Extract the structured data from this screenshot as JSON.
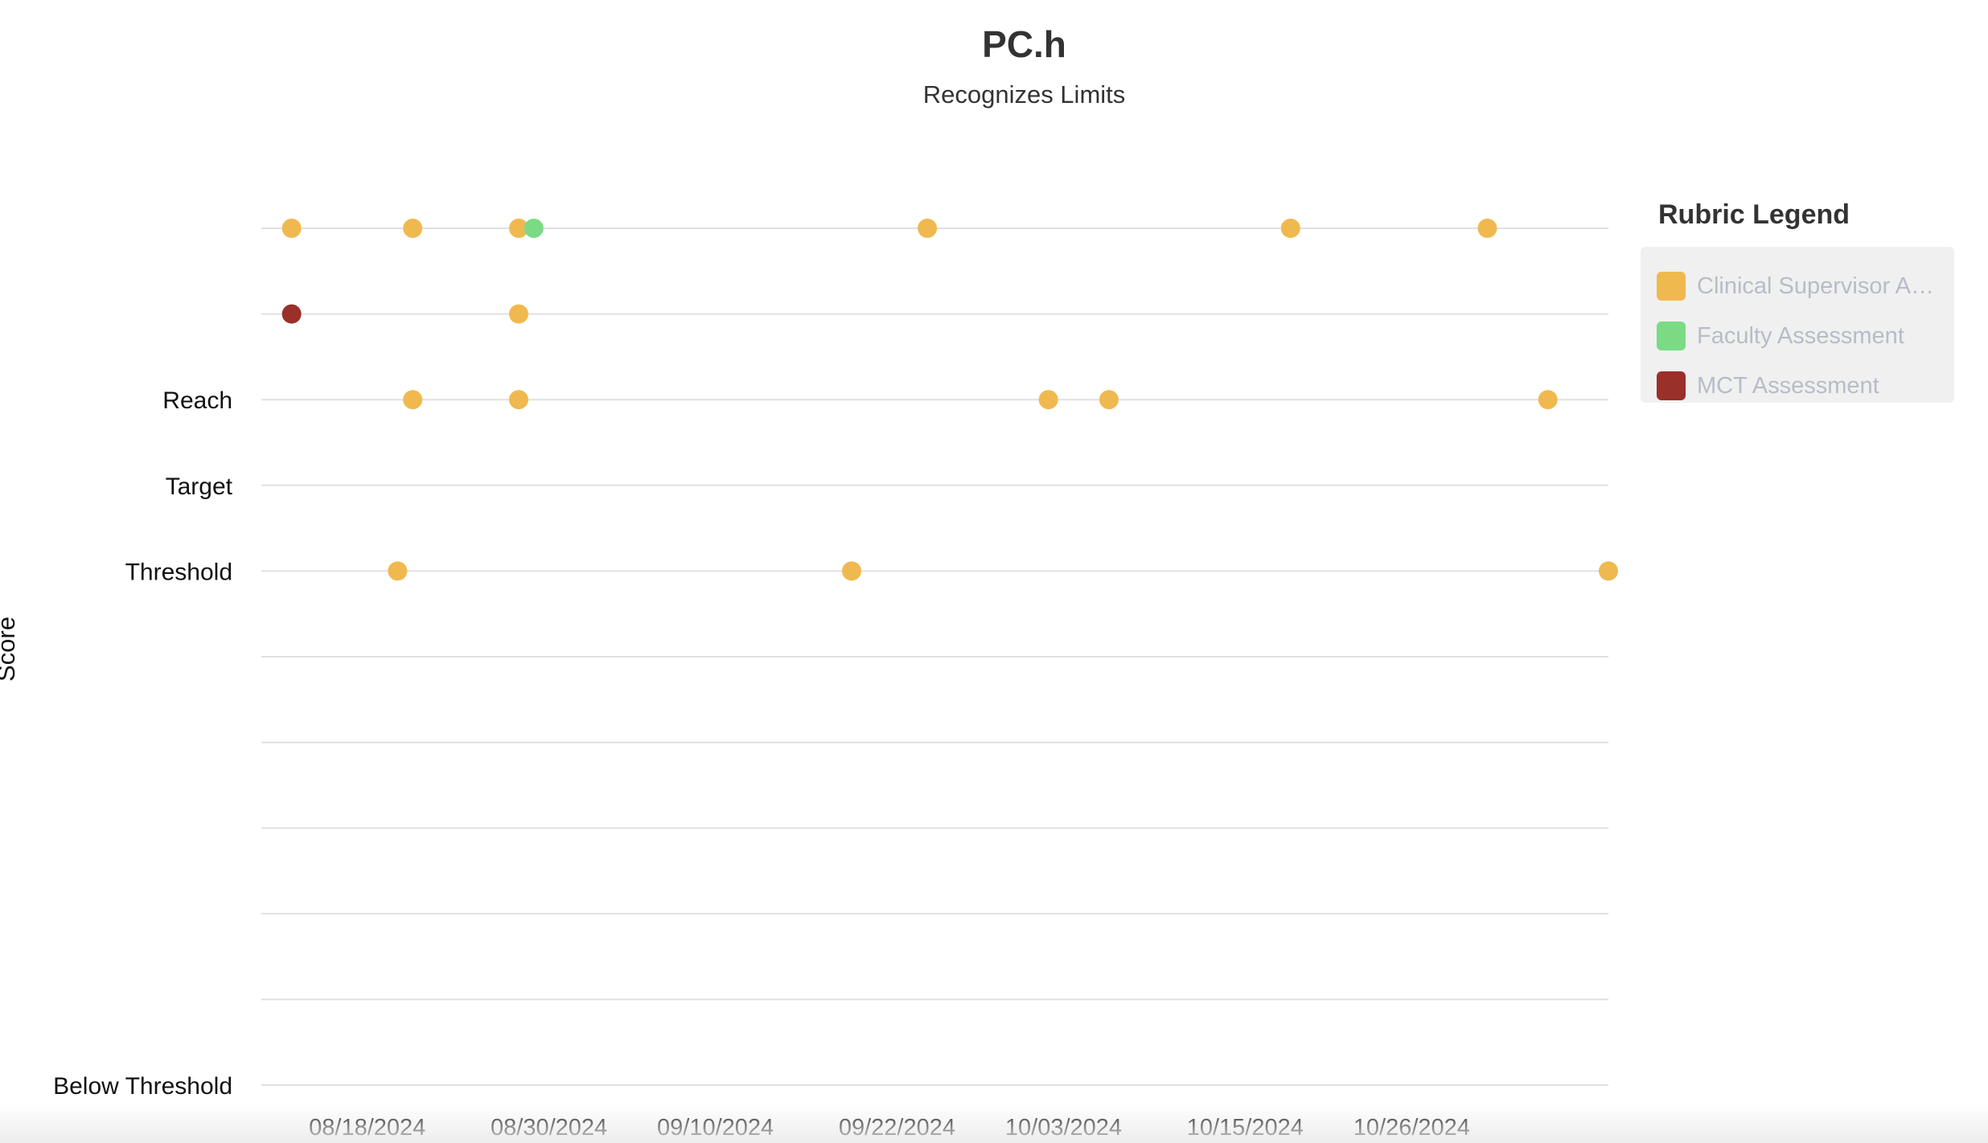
{
  "chart_data": {
    "type": "scatter",
    "title": "PC.h",
    "subtitle": "Recognizes Limits",
    "ylabel": "Score",
    "xlabel": "",
    "x_ticks": [
      "08/18/2024",
      "08/30/2024",
      "09/10/2024",
      "09/22/2024",
      "10/03/2024",
      "10/15/2024",
      "10/26/2024"
    ],
    "xlim": [
      "2024-08-11",
      "2024-11-08"
    ],
    "y_levels": 11,
    "y_tick_labels": [
      {
        "level": 0,
        "label": "Below Threshold"
      },
      {
        "level": 6,
        "label": "Threshold"
      },
      {
        "level": 7,
        "label": "Target"
      },
      {
        "level": 8,
        "label": "Reach"
      }
    ],
    "grid": true,
    "legend_title": "Rubric Legend",
    "legend_placement": "right",
    "series": [
      {
        "name": "Clinical Supervisor A…",
        "color": "#F0B94F",
        "points": [
          {
            "x": "2024-08-13",
            "y": 10
          },
          {
            "x": "2024-08-21",
            "y": 10
          },
          {
            "x": "2024-08-28",
            "y": 10
          },
          {
            "x": "2024-09-24",
            "y": 10
          },
          {
            "x": "2024-10-18",
            "y": 10
          },
          {
            "x": "2024-10-31",
            "y": 10
          },
          {
            "x": "2024-08-28",
            "y": 9
          },
          {
            "x": "2024-08-21",
            "y": 8
          },
          {
            "x": "2024-08-28",
            "y": 8
          },
          {
            "x": "2024-10-02",
            "y": 8
          },
          {
            "x": "2024-10-06",
            "y": 8
          },
          {
            "x": "2024-11-04",
            "y": 8
          },
          {
            "x": "2024-08-20",
            "y": 6
          },
          {
            "x": "2024-09-19",
            "y": 6
          },
          {
            "x": "2024-11-08",
            "y": 6
          }
        ]
      },
      {
        "name": "Faculty Assessment",
        "color": "#7ADB84",
        "points": [
          {
            "x": "2024-08-29",
            "y": 10
          }
        ]
      },
      {
        "name": "MCT Assessment",
        "color": "#9B2F2A",
        "points": [
          {
            "x": "2024-08-13",
            "y": 9
          }
        ]
      }
    ]
  }
}
